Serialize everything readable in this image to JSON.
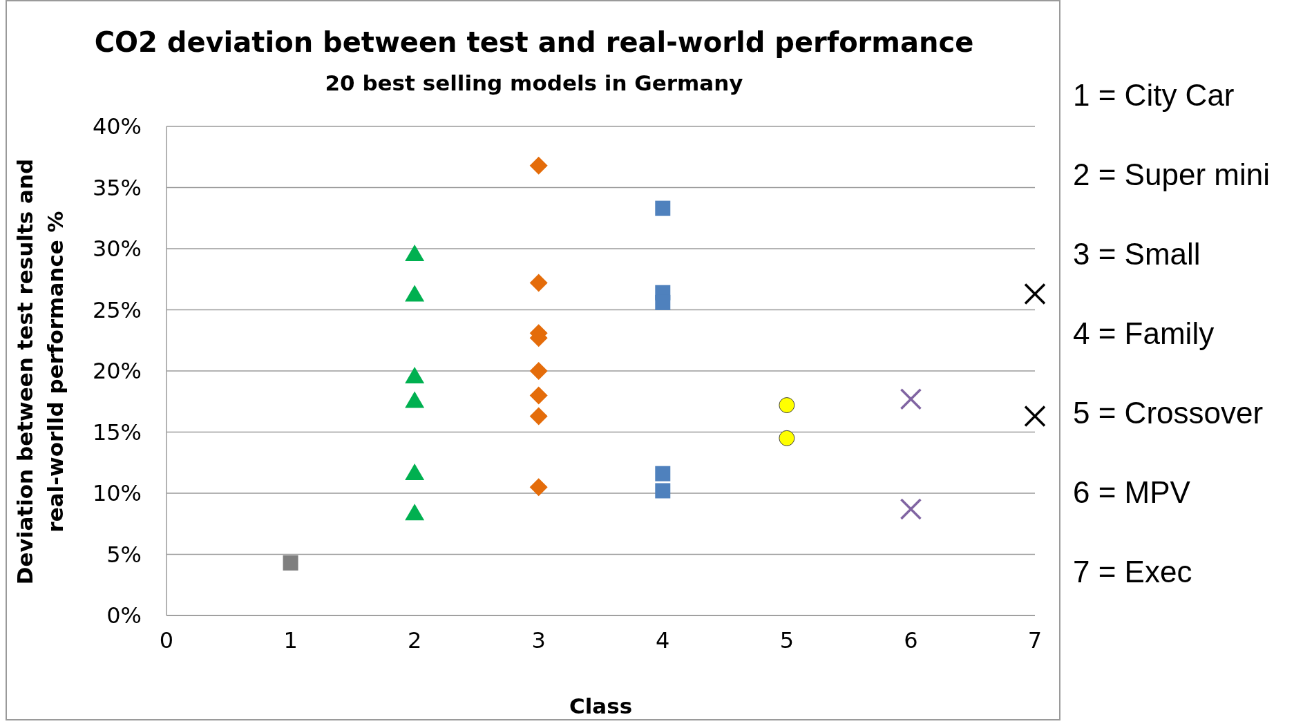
{
  "chart_data": {
    "type": "scatter",
    "title": "CO2 deviation between test and real-world performance",
    "subtitle": "20 best selling models in Germany",
    "xlabel": "Class",
    "ylabel": "Deviation between test results and real-worlld performance %",
    "annotations": [
      "1 = City Car",
      "2 = Super mini",
      "3 = Small",
      "4 = Family",
      "5 = Crossover",
      "6 = MPV",
      "7 = Exec"
    ],
    "xlim": [
      0,
      7
    ],
    "xticks": [
      0,
      1,
      2,
      3,
      4,
      5,
      6,
      7
    ],
    "ylim": [
      0,
      40
    ],
    "yticks": [
      {
        "value": 0,
        "label": "0%"
      },
      {
        "value": 5,
        "label": "5%"
      },
      {
        "value": 10,
        "label": "10%"
      },
      {
        "value": 15,
        "label": "15%"
      },
      {
        "value": 20,
        "label": "20%"
      },
      {
        "value": 25,
        "label": "25%"
      },
      {
        "value": 30,
        "label": "30%"
      },
      {
        "value": 35,
        "label": "35%"
      },
      {
        "value": 40,
        "label": "40%"
      }
    ],
    "grid": "y",
    "series": [
      {
        "color": "#7f7f7f",
        "marker": "square",
        "x": [
          1
        ],
        "values": [
          4.3
        ]
      },
      {
        "color": "#00b050",
        "marker": "triangle",
        "x": [
          2,
          2,
          2,
          2,
          2,
          2
        ],
        "values": [
          29.6,
          26.3,
          19.6,
          17.6,
          11.7,
          8.4
        ]
      },
      {
        "color": "#e46c0a",
        "marker": "diamond",
        "x": [
          3,
          3,
          3,
          3,
          3,
          3,
          3,
          3
        ],
        "values": [
          36.8,
          27.2,
          23.1,
          22.7,
          20.0,
          18.0,
          16.3,
          10.5
        ]
      },
      {
        "color": "#4f81bd",
        "marker": "square",
        "x": [
          4,
          4,
          4,
          4,
          4
        ],
        "values": [
          33.3,
          26.4,
          25.6,
          11.6,
          10.2
        ]
      },
      {
        "color": "#ffff00",
        "marker": "circle",
        "x": [
          5,
          5
        ],
        "values": [
          17.2,
          14.5
        ]
      },
      {
        "color": "#8064a2",
        "marker": "cross",
        "x": [
          6,
          6
        ],
        "values": [
          17.7,
          8.7
        ]
      },
      {
        "color": "#000000",
        "marker": "cross",
        "x": [
          7,
          7
        ],
        "values": [
          26.3,
          16.3
        ]
      }
    ]
  }
}
